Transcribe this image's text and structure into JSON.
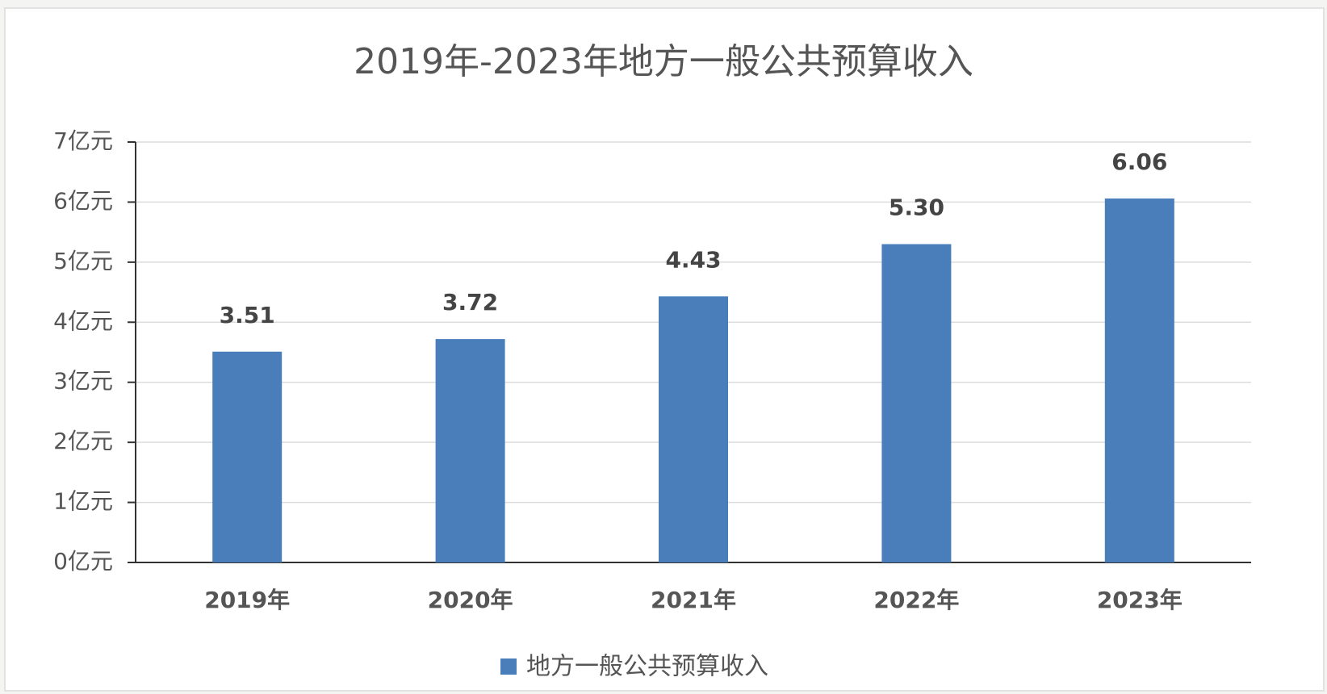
{
  "chart_data": {
    "type": "bar",
    "title": "2019年-2023年地方一般公共预算收入",
    "categories": [
      "2019年",
      "2020年",
      "2021年",
      "2022年",
      "2023年"
    ],
    "series": [
      {
        "name": "地方一般公共预算收入",
        "color": "#4a7ebb",
        "values": [
          3.51,
          3.72,
          4.43,
          5.3,
          6.06
        ],
        "value_labels": [
          "3.51",
          "3.72",
          "4.43",
          "5.30",
          "6.06"
        ]
      }
    ],
    "ylim": [
      0,
      7
    ],
    "yticks": [
      {
        "value": 0,
        "label": "0亿元"
      },
      {
        "value": 1,
        "label": "1亿元"
      },
      {
        "value": 2,
        "label": "2亿元"
      },
      {
        "value": 3,
        "label": "3亿元"
      },
      {
        "value": 4,
        "label": "4亿元"
      },
      {
        "value": 5,
        "label": "5亿元"
      },
      {
        "value": 6,
        "label": "6亿元"
      },
      {
        "value": 7,
        "label": "7亿元"
      }
    ],
    "grid": true,
    "legend": "bottom"
  }
}
